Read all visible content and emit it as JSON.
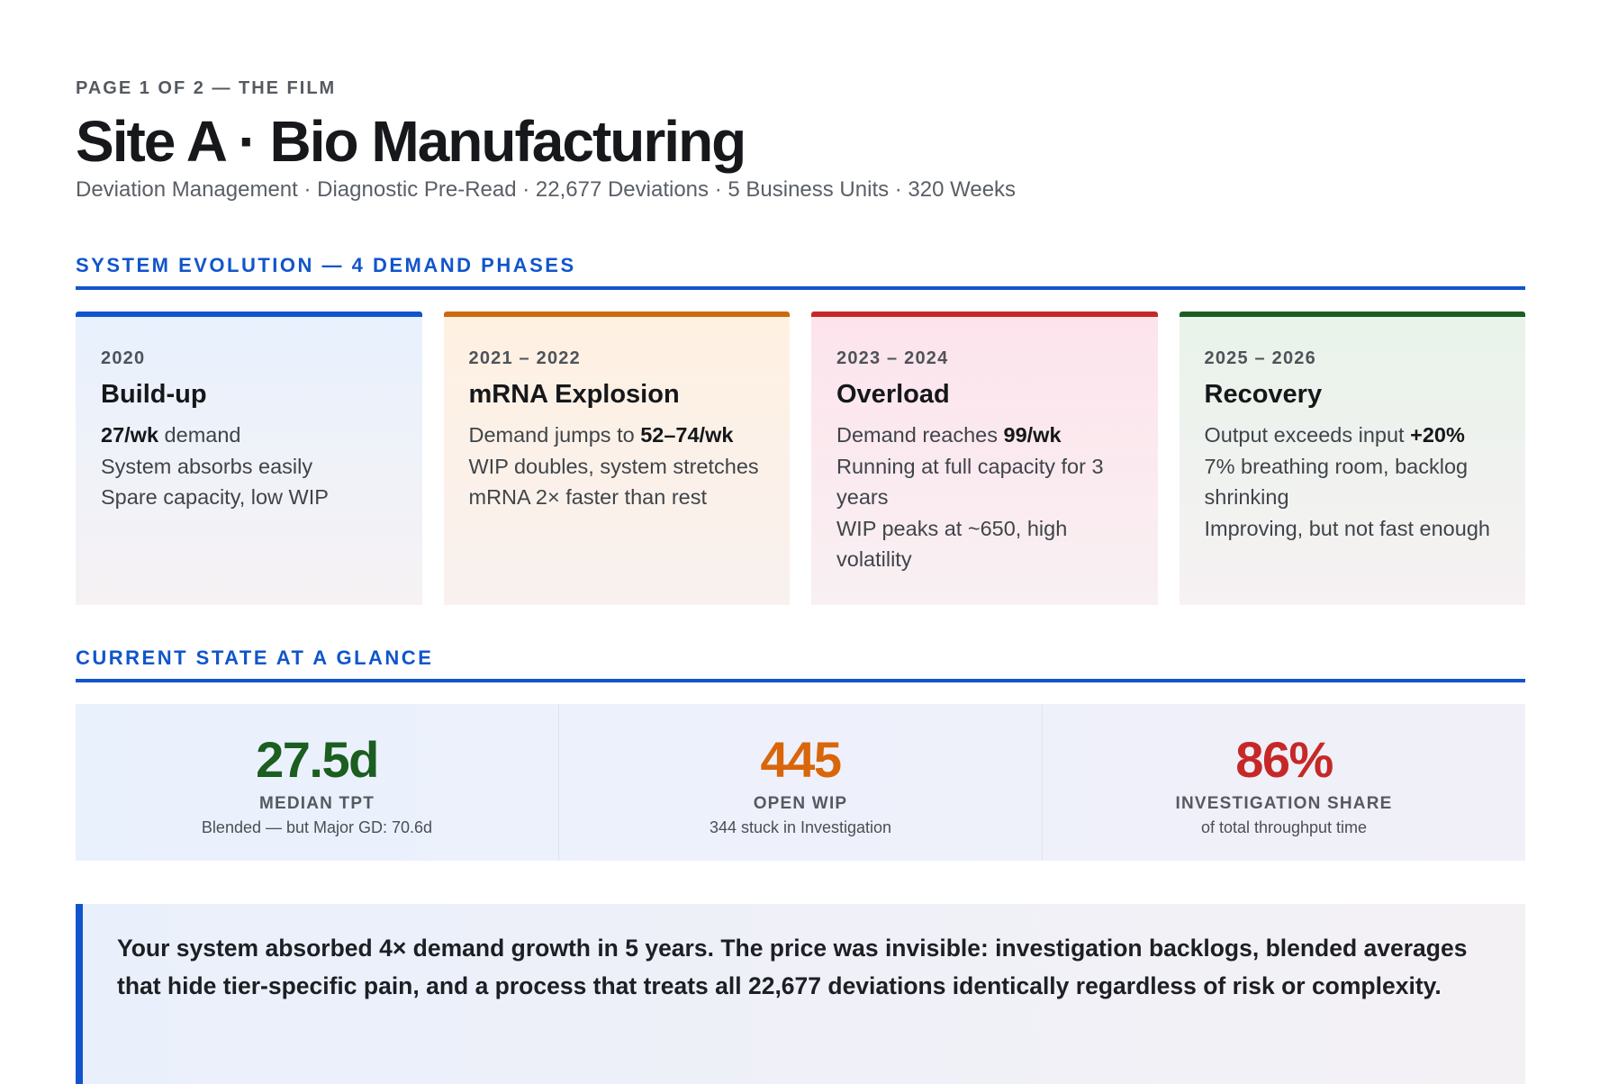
{
  "header": {
    "eyebrow": "PAGE 1 OF 2 — THE FILM",
    "title": "Site A · Bio Manufacturing",
    "subtitle": "Deviation Management · Diagnostic Pre-Read · 22,677 Deviations · 5 Business Units · 320 Weeks"
  },
  "sections": {
    "evolution": "SYSTEM EVOLUTION — 4 DEMAND PHASES",
    "current": "CURRENT STATE AT A GLANCE"
  },
  "phases": [
    {
      "years": "2020",
      "name": "Build-up",
      "color": "#1155cc",
      "lines": [
        {
          "pre": "",
          "strong": "27/wk",
          "post": " demand"
        },
        {
          "pre": "System absorbs easily",
          "strong": "",
          "post": ""
        },
        {
          "pre": "Spare capacity, low WIP",
          "strong": "",
          "post": ""
        }
      ]
    },
    {
      "years": "2021 – 2022",
      "name": "mRNA Explosion",
      "color": "#cc6a10",
      "lines": [
        {
          "pre": "Demand jumps to ",
          "strong": "52–74/wk",
          "post": ""
        },
        {
          "pre": "WIP doubles, system stretches",
          "strong": "",
          "post": ""
        },
        {
          "pre": "mRNA 2× faster than rest",
          "strong": "",
          "post": ""
        }
      ]
    },
    {
      "years": "2023 – 2024",
      "name": "Overload",
      "color": "#c62828",
      "lines": [
        {
          "pre": "Demand reaches ",
          "strong": "99/wk",
          "post": ""
        },
        {
          "pre": "Running at full capacity for 3 years",
          "strong": "",
          "post": ""
        },
        {
          "pre": "WIP peaks at ~650, high volatility",
          "strong": "",
          "post": ""
        }
      ]
    },
    {
      "years": "2025 – 2026",
      "name": "Recovery",
      "color": "#1b5e20",
      "lines": [
        {
          "pre": "Output exceeds input ",
          "strong": "+20%",
          "post": ""
        },
        {
          "pre": "7% breathing room, backlog shrinking",
          "strong": "",
          "post": ""
        },
        {
          "pre": "Improving, but not fast enough",
          "strong": "",
          "post": ""
        }
      ]
    }
  ],
  "kpis": [
    {
      "value": "27.5d",
      "label": "MEDIAN TPT",
      "sub": "Blended — but Major GD: 70.6d",
      "color": "#1b5e20"
    },
    {
      "value": "445",
      "label": "OPEN WIP",
      "sub": "344 stuck in Investigation",
      "color": "#d9660b"
    },
    {
      "value": "86%",
      "label": "INVESTIGATION SHARE",
      "sub": "of total throughput time",
      "color": "#c62828"
    }
  ],
  "callout": {
    "text": "Your system absorbed 4× demand growth in 5 years. The price was invisible: investigation backlogs, blended averages that hide tier-specific pain, and a process that treats all 22,677 deviations identically regardless of risk or complexity."
  }
}
